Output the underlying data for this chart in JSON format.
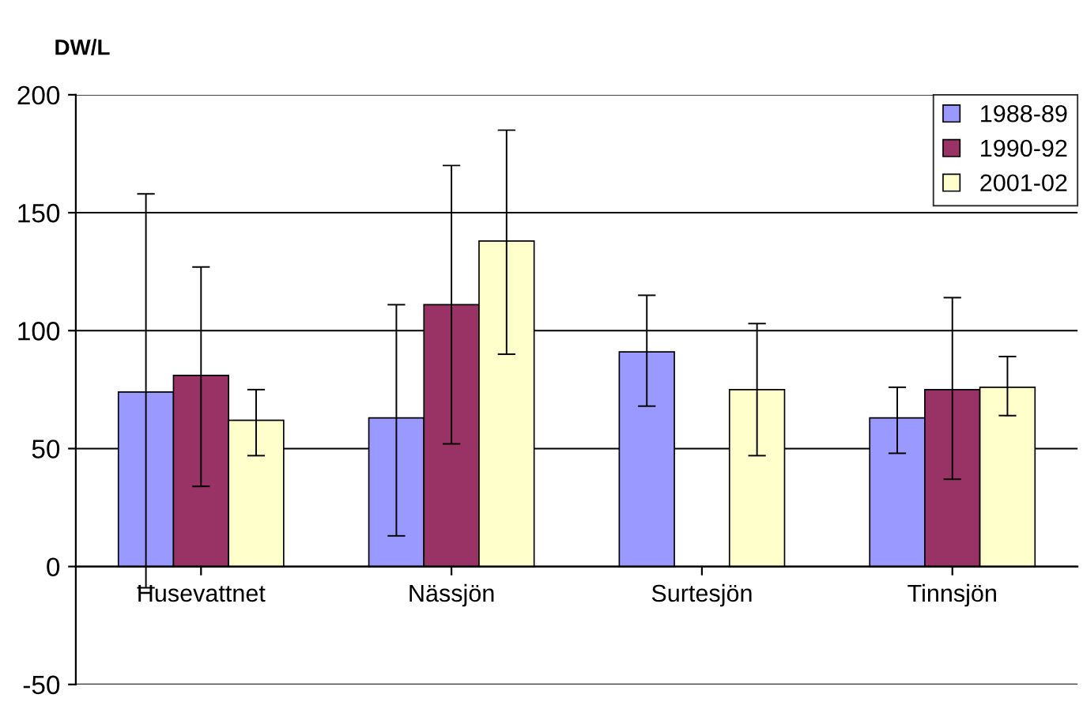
{
  "chart_data": {
    "type": "bar",
    "ylabel": "DW/L",
    "categories": [
      "Husevattnet",
      "Nässjön",
      "Surtesjön",
      "Tinnsjön"
    ],
    "series": [
      {
        "name": "1988-89",
        "color": "#9999ff",
        "values": [
          74,
          63,
          91,
          63
        ],
        "errors": [
          [
            -9,
            158
          ],
          [
            13,
            111
          ],
          [
            68,
            115
          ],
          [
            48,
            76
          ]
        ]
      },
      {
        "name": "1990-92",
        "color": "#993366",
        "values": [
          81,
          111,
          null,
          75
        ],
        "errors": [
          [
            34,
            127
          ],
          [
            52,
            170
          ],
          null,
          [
            37,
            114
          ]
        ]
      },
      {
        "name": "2001-02",
        "color": "#ffffcc",
        "values": [
          62,
          138,
          75,
          76
        ],
        "errors": [
          [
            47,
            75
          ],
          [
            90,
            185
          ],
          [
            47,
            103
          ],
          [
            64,
            89
          ]
        ]
      }
    ],
    "ylim": [
      -50,
      200
    ],
    "yticks": [
      -50,
      0,
      50,
      100,
      150,
      200
    ],
    "grid": "y",
    "legend": "top right"
  }
}
